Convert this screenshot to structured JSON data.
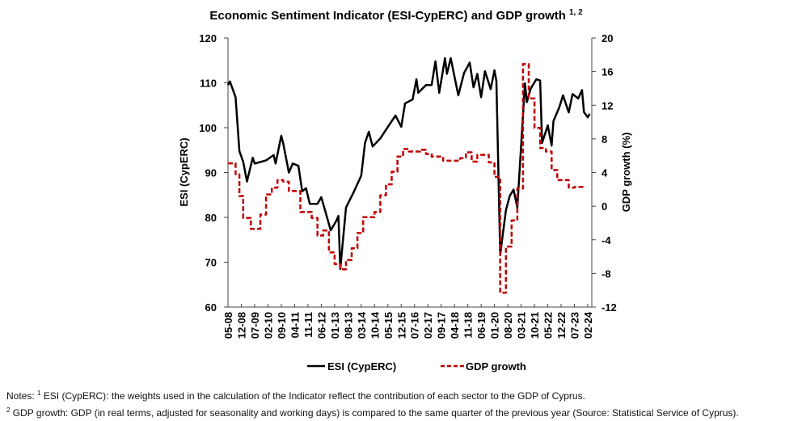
{
  "chart_data": {
    "type": "line",
    "title": "Economic Sentiment Indicator (ESI-CypERC) and GDP growth",
    "title_superscript": "1, 2",
    "ylabel_left": "ESI (CypERC)",
    "ylabel_right": "GDP growth (%)",
    "ylim_left": [
      60,
      120
    ],
    "yticks_left": [
      60,
      70,
      80,
      90,
      100,
      110,
      120
    ],
    "ylim_right": [
      -12,
      20
    ],
    "yticks_right": [
      -12,
      -8,
      -4,
      0,
      4,
      8,
      12,
      16,
      20
    ],
    "xlim": [
      "2008-05",
      "2024-03"
    ],
    "xtick_labels": [
      "05-08",
      "12-08",
      "07-09",
      "02-10",
      "09-10",
      "04-11",
      "11-11",
      "06-12",
      "01-13",
      "08-13",
      "03-14",
      "10-14",
      "05-15",
      "12-15",
      "07-16",
      "02-17",
      "09-17",
      "04-18",
      "11-18",
      "06-19",
      "01-20",
      "08-20",
      "03-21",
      "10-21",
      "05-22",
      "12-22",
      "07-23",
      "02-24"
    ],
    "grid": false,
    "legend_placement": "bottom",
    "series": [
      {
        "name": "ESI (CypERC)",
        "axis": "left",
        "color": "#000000",
        "style": "solid",
        "points": [
          [
            "2008-05",
            109.5
          ],
          [
            "2008-06",
            110.3
          ],
          [
            "2008-09",
            106.8
          ],
          [
            "2008-11",
            94.8
          ],
          [
            "2009-01",
            92.4
          ],
          [
            "2009-03",
            88
          ],
          [
            "2009-06",
            93.3
          ],
          [
            "2009-07",
            92
          ],
          [
            "2010-01",
            92.7
          ],
          [
            "2010-05",
            93.9
          ],
          [
            "2010-06",
            92
          ],
          [
            "2010-09",
            98.2
          ],
          [
            "2010-10",
            96.5
          ],
          [
            "2011-01",
            90
          ],
          [
            "2011-03",
            92
          ],
          [
            "2011-06",
            91.5
          ],
          [
            "2011-08",
            85.8
          ],
          [
            "2011-10",
            86.5
          ],
          [
            "2011-12",
            83
          ],
          [
            "2012-04",
            83
          ],
          [
            "2012-06",
            84.5
          ],
          [
            "2012-11",
            77.1
          ],
          [
            "2013-02",
            79.3
          ],
          [
            "2013-03",
            80.3
          ],
          [
            "2013-04",
            68.5
          ],
          [
            "2013-07",
            82.2
          ],
          [
            "2013-11",
            85.6
          ],
          [
            "2014-03",
            89.3
          ],
          [
            "2014-05",
            96.6
          ],
          [
            "2014-07",
            99.1
          ],
          [
            "2014-09",
            95.8
          ],
          [
            "2015-01",
            97.6
          ],
          [
            "2015-05",
            100.2
          ],
          [
            "2015-09",
            102.7
          ],
          [
            "2015-12",
            100.2
          ],
          [
            "2016-02",
            105.4
          ],
          [
            "2016-06",
            106.3
          ],
          [
            "2016-08",
            110.8
          ],
          [
            "2016-09",
            107.8
          ],
          [
            "2017-01",
            109.5
          ],
          [
            "2017-04",
            109.5
          ],
          [
            "2017-06",
            114.8
          ],
          [
            "2017-08",
            107.8
          ],
          [
            "2017-11",
            115.5
          ],
          [
            "2017-12",
            112
          ],
          [
            "2018-02",
            115.5
          ],
          [
            "2018-06",
            107.2
          ],
          [
            "2018-09",
            112.2
          ],
          [
            "2018-12",
            114.5
          ],
          [
            "2019-02",
            109
          ],
          [
            "2019-04",
            112
          ],
          [
            "2019-06",
            106.8
          ],
          [
            "2019-08",
            112.6
          ],
          [
            "2019-11",
            108.6
          ],
          [
            "2020-01",
            112.8
          ],
          [
            "2020-02",
            110.4
          ],
          [
            "2020-04",
            71.7
          ],
          [
            "2020-07",
            81.6
          ],
          [
            "2020-09",
            84.8
          ],
          [
            "2020-11",
            86.2
          ],
          [
            "2021-01",
            82.2
          ],
          [
            "2021-05",
            109.9
          ],
          [
            "2021-06",
            105.7
          ],
          [
            "2021-08",
            108.7
          ],
          [
            "2021-11",
            110.8
          ],
          [
            "2022-01",
            110.5
          ],
          [
            "2022-02",
            96.6
          ],
          [
            "2022-05",
            100.5
          ],
          [
            "2022-07",
            96
          ],
          [
            "2022-08",
            101.5
          ],
          [
            "2022-11",
            104.5
          ],
          [
            "2023-01",
            107.2
          ],
          [
            "2023-04",
            103.4
          ],
          [
            "2023-06",
            107.5
          ],
          [
            "2023-09",
            106.5
          ],
          [
            "2023-11",
            108.4
          ],
          [
            "2023-12",
            103.5
          ],
          [
            "2024-02",
            102.3
          ],
          [
            "2024-03",
            103.1
          ]
        ]
      },
      {
        "name": "GDP growth",
        "axis": "right",
        "color": "#c00000",
        "style": "dashed",
        "step": true,
        "end": "2024-01",
        "points": [
          [
            "2008-05",
            5.1
          ],
          [
            "2008-09",
            3.8
          ],
          [
            "2008-11",
            1.2
          ],
          [
            "2009-01",
            -1.4
          ],
          [
            "2009-05",
            -2.7
          ],
          [
            "2009-10",
            -1.0
          ],
          [
            "2010-01",
            1.4
          ],
          [
            "2010-04",
            2.2
          ],
          [
            "2010-07",
            3.1
          ],
          [
            "2010-10",
            2.9
          ],
          [
            "2011-01",
            1.8
          ],
          [
            "2011-07",
            -0.7
          ],
          [
            "2012-01",
            -1.4
          ],
          [
            "2012-04",
            -3.5
          ],
          [
            "2012-07",
            -2.9
          ],
          [
            "2012-10",
            -5.5
          ],
          [
            "2013-01",
            -6.9
          ],
          [
            "2013-04",
            -7.5
          ],
          [
            "2013-07",
            -6.4
          ],
          [
            "2013-10",
            -5.0
          ],
          [
            "2014-01",
            -3.2
          ],
          [
            "2014-04",
            -1.3
          ],
          [
            "2014-10",
            -0.7
          ],
          [
            "2015-01",
            1.3
          ],
          [
            "2015-04",
            2.6
          ],
          [
            "2015-07",
            4.1
          ],
          [
            "2015-10",
            5.9
          ],
          [
            "2016-01",
            6.8
          ],
          [
            "2016-04",
            6.5
          ],
          [
            "2016-10",
            6.7
          ],
          [
            "2017-01",
            6.2
          ],
          [
            "2017-04",
            5.9
          ],
          [
            "2017-10",
            5.4
          ],
          [
            "2018-07",
            5.7
          ],
          [
            "2018-10",
            6.4
          ],
          [
            "2019-01",
            5.3
          ],
          [
            "2019-04",
            6.1
          ],
          [
            "2019-10",
            5.2
          ],
          [
            "2020-01",
            3.5
          ],
          [
            "2020-04",
            -10.3
          ],
          [
            "2020-07",
            -4.8
          ],
          [
            "2020-10",
            -1.7
          ],
          [
            "2021-01",
            2.1
          ],
          [
            "2021-04",
            16.9
          ],
          [
            "2021-07",
            12.8
          ],
          [
            "2021-10",
            9.3
          ],
          [
            "2022-01",
            6.9
          ],
          [
            "2022-04",
            6.5
          ],
          [
            "2022-07",
            4.3
          ],
          [
            "2022-10",
            3.1
          ],
          [
            "2023-04",
            2.2
          ],
          [
            "2023-07",
            2.3
          ]
        ]
      }
    ]
  },
  "legend": {
    "esi": "ESI (CypERC)",
    "gdp": "GDP growth"
  },
  "notes": {
    "line1_sup": "1",
    "line1": " ESI (CypERC): the weights used in the calculation of the Indicator reflect the contribution of each sector to the GDP of Cyprus.",
    "line1_prefix": "Notes: ",
    "line2_sup": "2",
    "line2": " GDP growth: GDP (in real terms, adjusted for seasonality and working days) is compared to the same quarter of the previous year (Source: Statistical Service of Cyprus)."
  }
}
